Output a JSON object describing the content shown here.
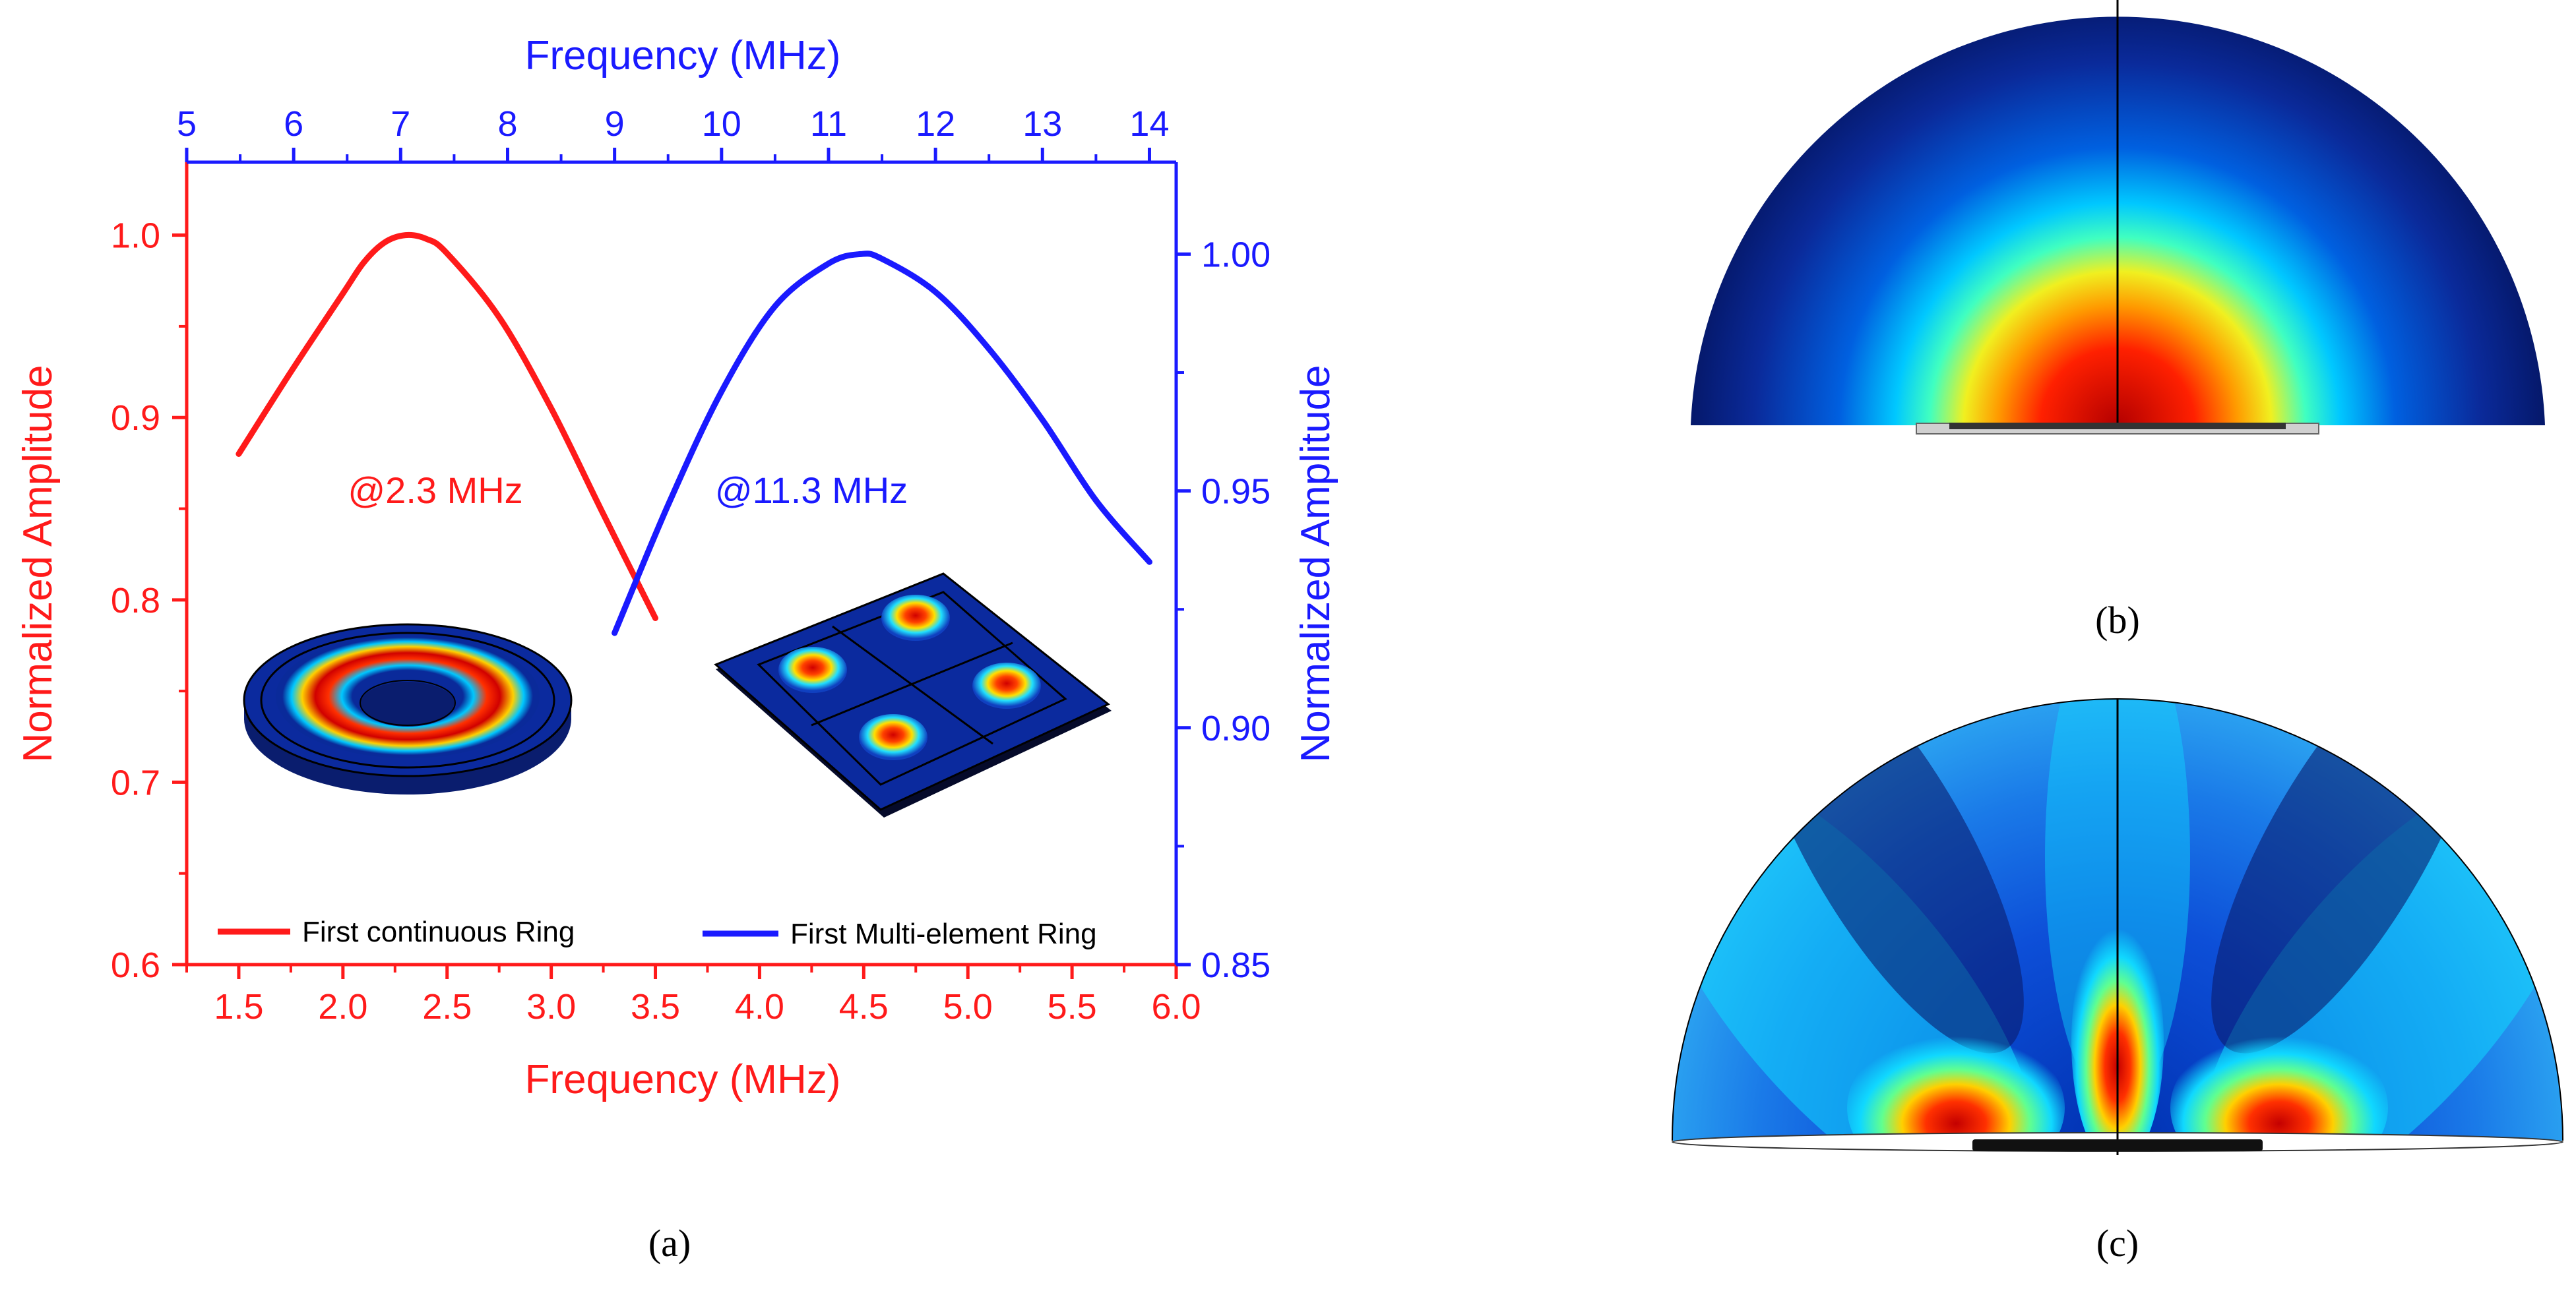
{
  "colors": {
    "red": "#ff1a1a",
    "blue": "#1a1aff",
    "black": "#000000"
  },
  "chart_data": {
    "type": "line",
    "panel_label": "(a)",
    "x_bottom": {
      "label": "Frequency (MHz)",
      "range": [
        1.25,
        6.0
      ],
      "ticks": [
        1.5,
        2.0,
        2.5,
        3.0,
        3.5,
        4.0,
        4.5,
        5.0,
        5.5,
        6.0
      ],
      "tick_labels": [
        "1.5",
        "2.0",
        "2.5",
        "3.0",
        "3.5",
        "4.0",
        "4.5",
        "5.0",
        "5.5",
        "6.0"
      ]
    },
    "x_top": {
      "label": "Frequency (MHz)",
      "range": [
        5,
        14.25
      ],
      "ticks": [
        5,
        6,
        7,
        8,
        9,
        10,
        11,
        12,
        13,
        14
      ],
      "tick_labels": [
        "5",
        "6",
        "7",
        "8",
        "9",
        "10",
        "11",
        "12",
        "13",
        "14"
      ]
    },
    "y_left": {
      "label": "Normalized Amplitude",
      "range": [
        0.6,
        1.04
      ],
      "ticks": [
        0.6,
        0.7,
        0.8,
        0.9,
        1.0
      ],
      "tick_labels": [
        "0.6",
        "0.7",
        "0.8",
        "0.9",
        "1.0"
      ]
    },
    "y_right": {
      "label": "Normalized Amplitude",
      "range": [
        0.85,
        1.0194
      ],
      "ticks": [
        0.85,
        0.9,
        0.95,
        1.0
      ],
      "tick_labels": [
        "0.85",
        "0.90",
        "0.95",
        "1.00"
      ]
    },
    "series": [
      {
        "name": "First continuous Ring",
        "axis": "bottom-left",
        "x": [
          1.5,
          1.75,
          2.0,
          2.1,
          2.2,
          2.3,
          2.4,
          2.5,
          2.75,
          3.0,
          3.25,
          3.5
        ],
        "y": [
          0.88,
          0.925,
          0.968,
          0.985,
          0.996,
          1.0,
          0.998,
          0.99,
          0.955,
          0.905,
          0.847,
          0.79
        ]
      },
      {
        "name": "First Multi-element Ring",
        "axis": "top-right",
        "x": [
          9.0,
          9.5,
          10.0,
          10.5,
          11.0,
          11.3,
          11.5,
          12.0,
          12.5,
          13.0,
          13.5,
          14.0
        ],
        "y": [
          0.92,
          0.947,
          0.971,
          0.989,
          0.998,
          1.0,
          0.999,
          0.992,
          0.98,
          0.965,
          0.948,
          0.935
        ]
      }
    ],
    "annotations": [
      {
        "text": "@2.3 MHz",
        "color": "red"
      },
      {
        "text": "@11.3 MHz",
        "color": "blue"
      }
    ],
    "legend": [
      "First continuous Ring",
      "First Multi-element Ring"
    ],
    "legend_placement": "bottom"
  },
  "captions": {
    "a": "(a)",
    "b": "(b)",
    "c": "(c)"
  }
}
